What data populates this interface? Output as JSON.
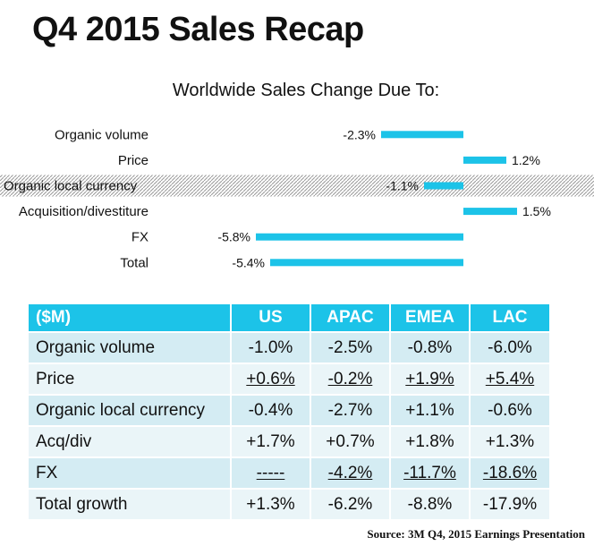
{
  "page": {
    "title": "Q4 2015 Sales Recap"
  },
  "chart_data": {
    "type": "bar",
    "orientation": "horizontal",
    "title": "Worldwide Sales Change Due To:",
    "categories": [
      "Organic volume",
      "Price",
      "Organic local currency",
      "Acquisition/divestiture",
      "FX",
      "Total"
    ],
    "values": [
      -2.3,
      1.2,
      -1.1,
      1.5,
      -5.8,
      -5.4
    ],
    "value_labels": [
      "-2.3%",
      "1.2%",
      "-1.1%",
      "1.5%",
      "-5.8%",
      "-5.4%"
    ],
    "highlighted_category": "Organic local currency",
    "bar_color": "#1cc3e8",
    "xlim": [
      -6.0,
      2.0
    ],
    "grid": false,
    "legend": "none"
  },
  "table": {
    "headers": [
      "($M)",
      "US",
      "APAC",
      "EMEA",
      "LAC"
    ],
    "rows": [
      {
        "label": "Organic volume",
        "cells": [
          "-1.0%",
          "-2.5%",
          "-0.8%",
          "-6.0%"
        ],
        "underline": [
          false,
          false,
          false,
          false
        ]
      },
      {
        "label": "Price",
        "cells": [
          "+0.6%",
          "-0.2%",
          "+1.9%",
          "+5.4%"
        ],
        "underline": [
          true,
          true,
          true,
          true
        ]
      },
      {
        "label": "Organic local currency",
        "cells": [
          "-0.4%",
          "-2.7%",
          "+1.1%",
          "-0.6%"
        ],
        "underline": [
          false,
          false,
          false,
          false
        ]
      },
      {
        "label": "Acq/div",
        "cells": [
          "+1.7%",
          "+0.7%",
          "+1.8%",
          "+1.3%"
        ],
        "underline": [
          false,
          false,
          false,
          false
        ]
      },
      {
        "label": "FX",
        "cells": [
          "-----",
          "-4.2%",
          "-11.7%",
          "-18.6%"
        ],
        "underline": [
          true,
          true,
          true,
          true
        ]
      },
      {
        "label": "Total growth",
        "cells": [
          "+1.3%",
          "-6.2%",
          "-8.8%",
          "-17.9%"
        ],
        "underline": [
          false,
          false,
          false,
          false
        ]
      }
    ],
    "header_color": "#1cc3e8",
    "row_colors": [
      "#d4ecf3",
      "#eaf5f8"
    ]
  },
  "source": "Source: 3M Q4, 2015 Earnings Presentation"
}
